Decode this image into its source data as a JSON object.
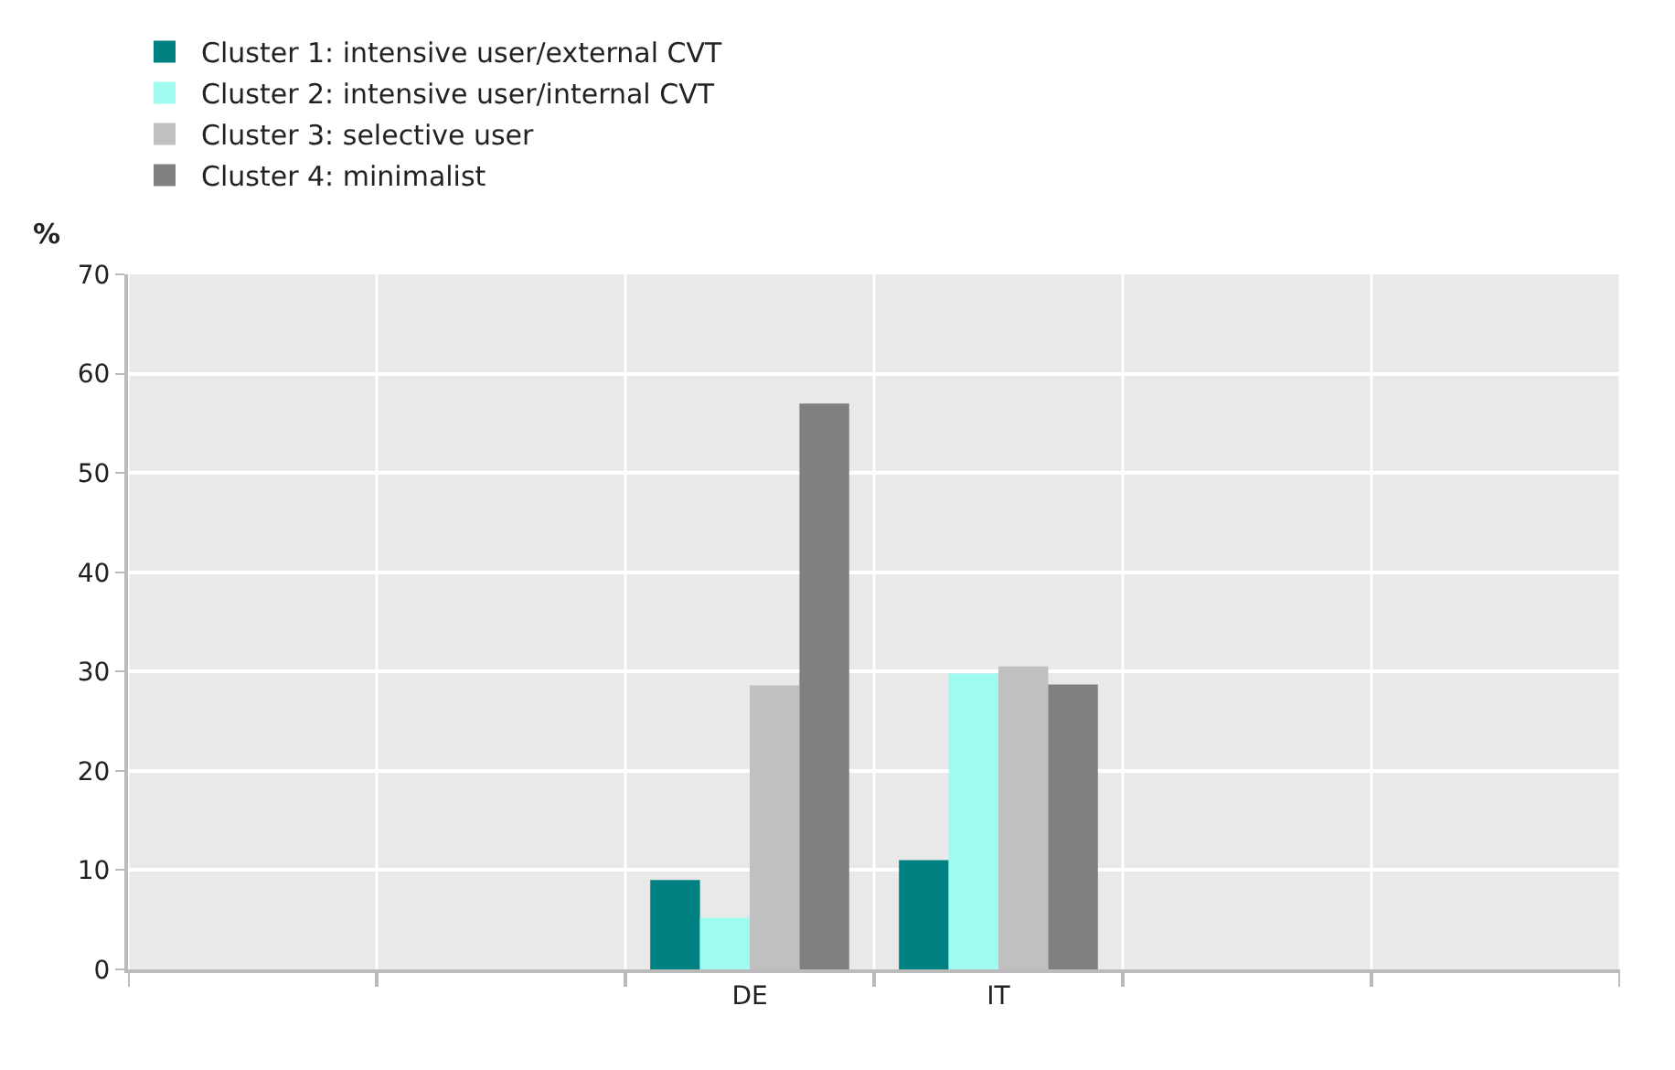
{
  "chart_data": {
    "type": "bar",
    "ylabel": "%",
    "categories": [
      null,
      null,
      "DE",
      "IT",
      null,
      null
    ],
    "series": [
      {
        "name": "Cluster 1: intensive user/external CVT",
        "color": "#008080",
        "values": [
          null,
          null,
          9.0,
          11.0,
          null,
          null
        ]
      },
      {
        "name": "Cluster 2: intensive user/internal CVT",
        "color": "#9ffaf0",
        "values": [
          null,
          null,
          5.2,
          29.8,
          null,
          null
        ]
      },
      {
        "name": "Cluster 3: selective user",
        "color": "#c0c0c0",
        "values": [
          null,
          null,
          28.6,
          30.5,
          null,
          null
        ]
      },
      {
        "name": "Cluster 4: minimalist",
        "color": "#808080",
        "values": [
          null,
          null,
          57.0,
          28.7,
          null,
          null
        ]
      }
    ],
    "ylim": [
      0,
      70
    ],
    "yticks": [
      0,
      10,
      20,
      30,
      40,
      50,
      60,
      70
    ],
    "grid": true,
    "legend": "top"
  }
}
